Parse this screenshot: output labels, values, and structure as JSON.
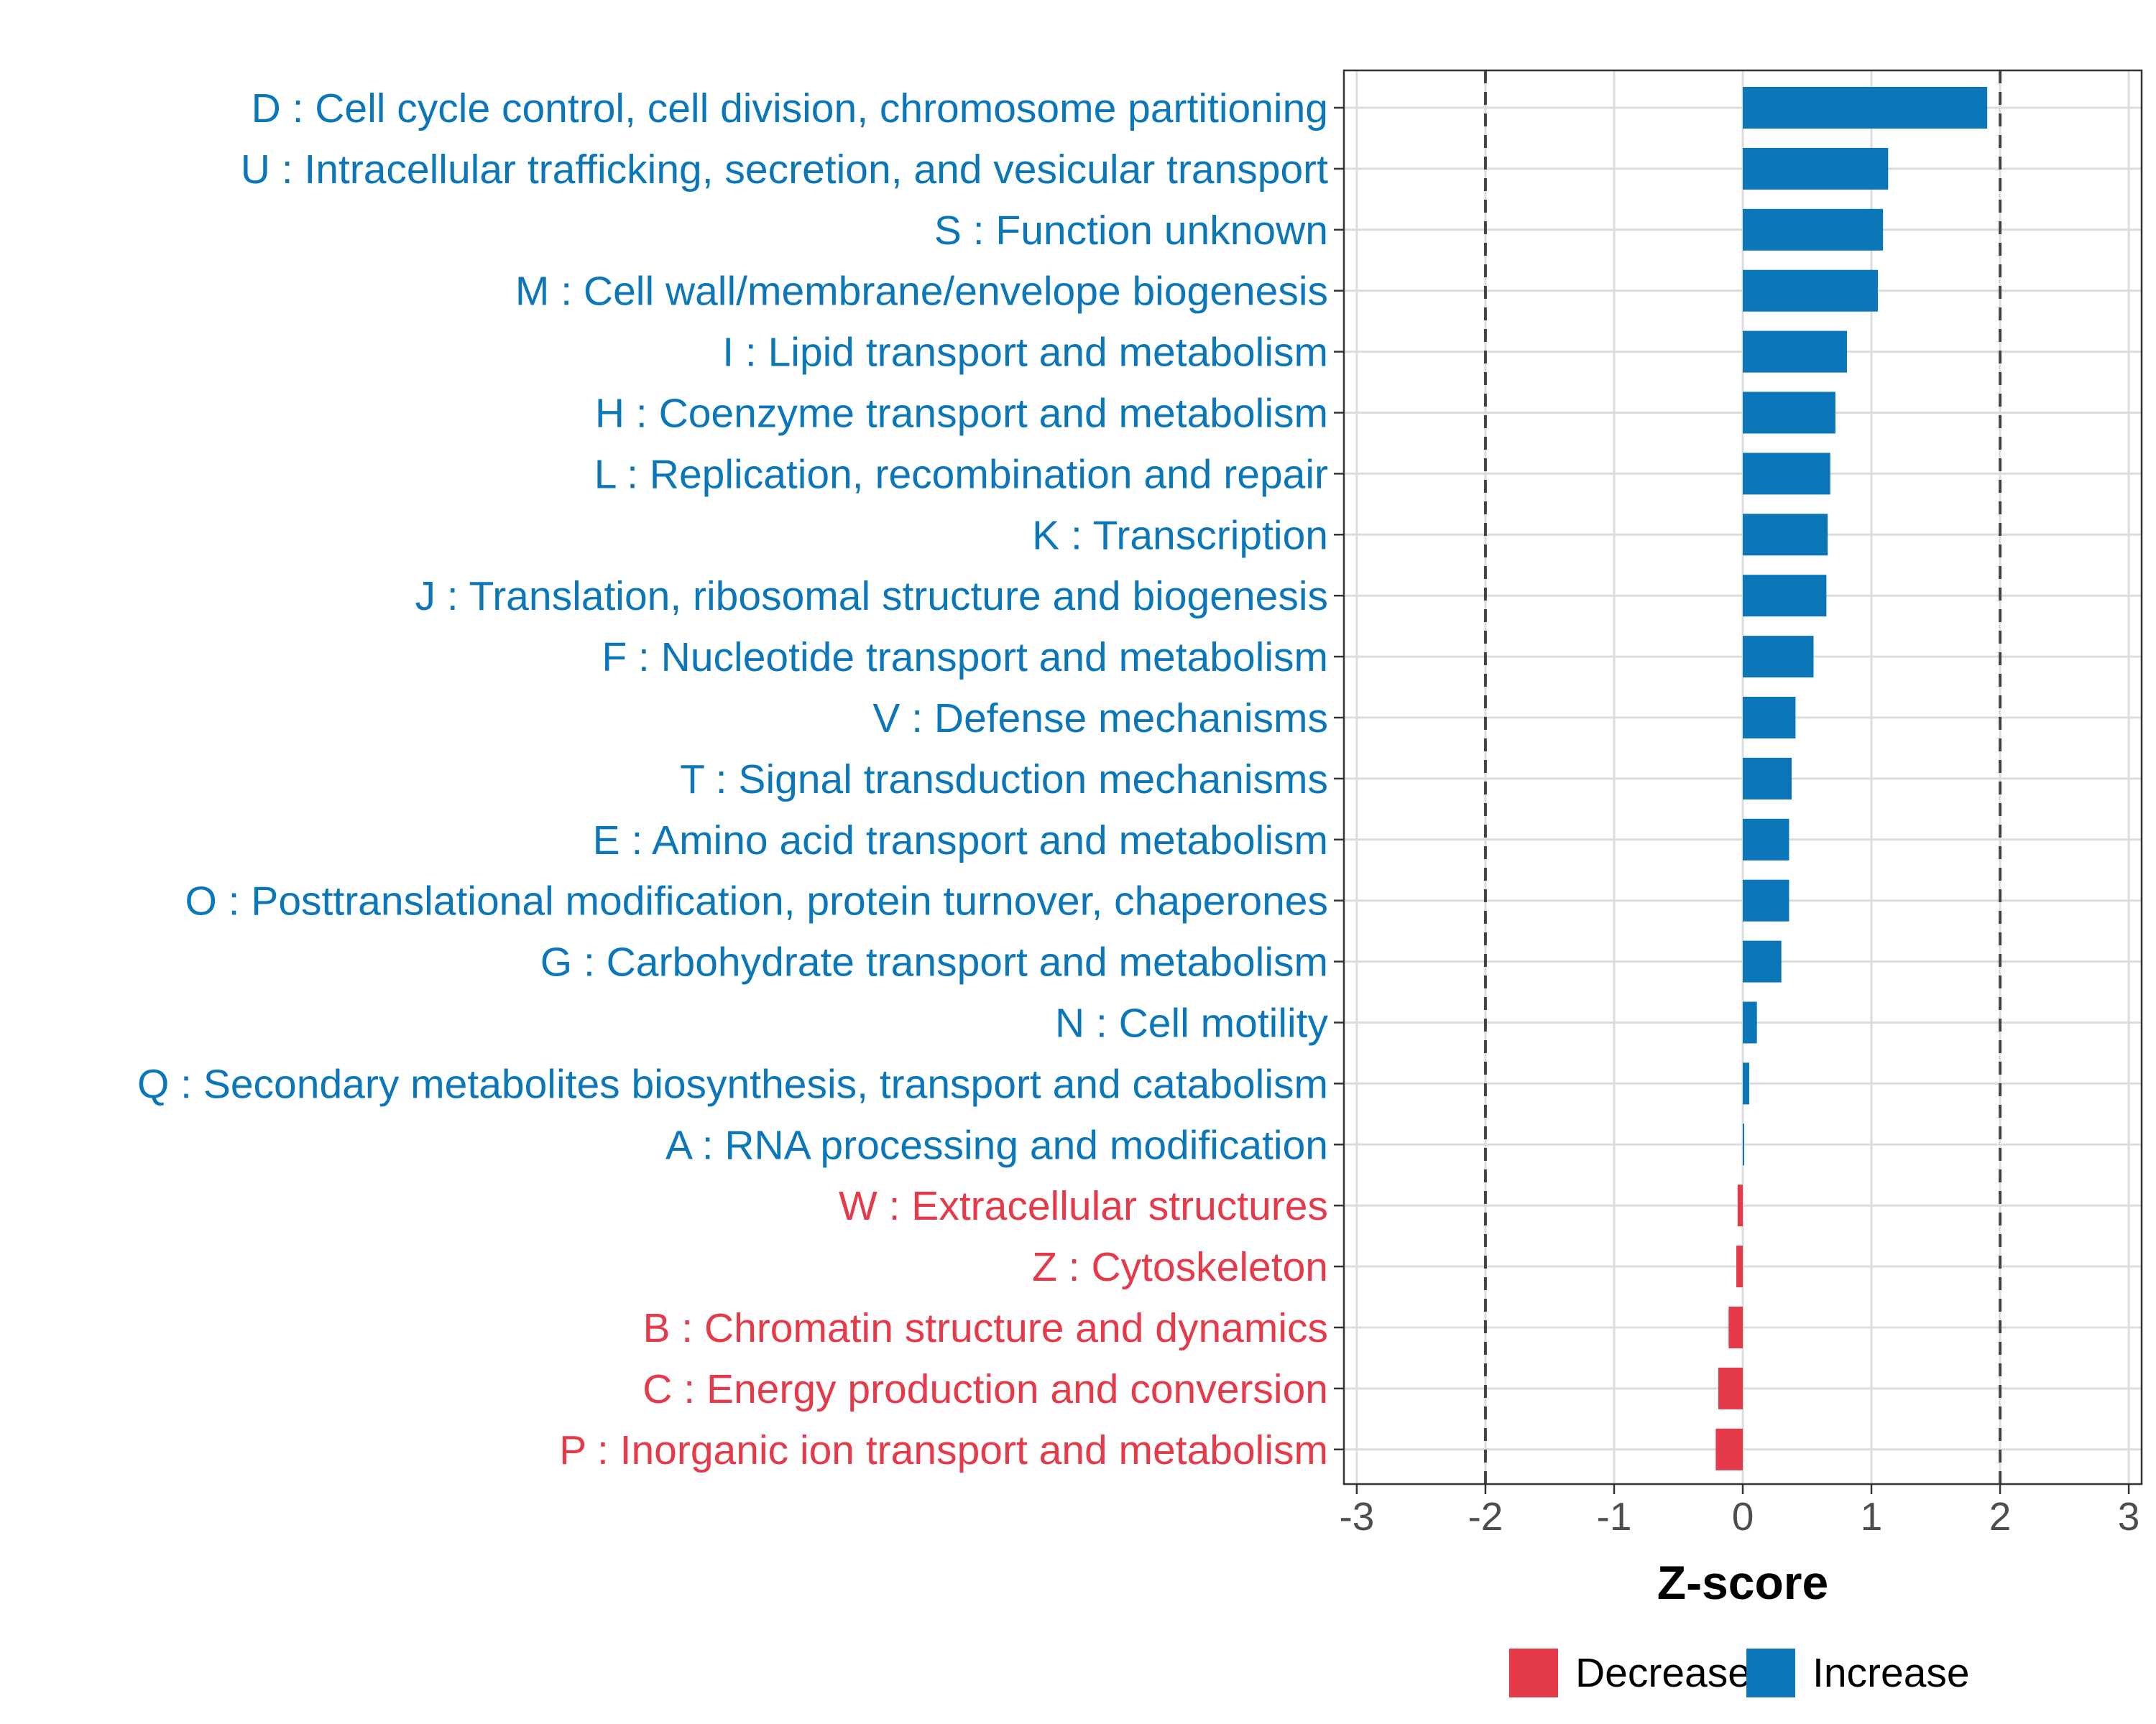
{
  "chart_data": {
    "type": "bar",
    "orientation": "horizontal",
    "xlabel": "Z-score",
    "ylabel": "",
    "xlim": [
      -3.1,
      3.1
    ],
    "xticks": [
      -3,
      -2,
      -1,
      0,
      1,
      2,
      3
    ],
    "tick_labels": [
      "-3",
      "-2",
      "-1",
      "0",
      "1",
      "2",
      "3"
    ],
    "reference_lines": [
      -2,
      2
    ],
    "grid": true,
    "colors": {
      "Increase": "#0b77b8",
      "Decrease": "#e43a4a"
    },
    "legend": {
      "position": "bottom",
      "entries": [
        {
          "label": "Decrease",
          "color": "#e43a4a"
        },
        {
          "label": "Increase",
          "color": "#0b77b8"
        }
      ]
    },
    "categories": [
      "D : Cell cycle control, cell division, chromosome partitioning",
      "U : Intracellular trafficking, secretion, and vesicular transport",
      "S : Function unknown",
      "M : Cell wall/membrane/envelope biogenesis",
      "I : Lipid transport and metabolism",
      "H : Coenzyme transport and metabolism",
      "L : Replication, recombination and repair",
      "K : Transcription",
      "J : Translation, ribosomal structure and biogenesis",
      "F : Nucleotide transport and metabolism",
      "V : Defense mechanisms",
      "T : Signal transduction mechanisms",
      "E : Amino acid transport and metabolism",
      "O : Posttranslational modification, protein turnover, chaperones",
      "G : Carbohydrate transport and metabolism",
      "N : Cell motility",
      "Q : Secondary metabolites biosynthesis, transport and catabolism",
      "A : RNA processing and modification",
      "W : Extracellular structures",
      "Z : Cytoskeleton",
      "B : Chromatin structure and dynamics",
      "C : Energy production and conversion",
      "P : Inorganic ion transport and metabolism"
    ],
    "values": [
      1.9,
      1.13,
      1.09,
      1.05,
      0.81,
      0.72,
      0.68,
      0.66,
      0.65,
      0.55,
      0.41,
      0.38,
      0.36,
      0.36,
      0.3,
      0.11,
      0.05,
      0.01,
      -0.04,
      -0.05,
      -0.11,
      -0.19,
      -0.21
    ],
    "groups": [
      "Increase",
      "Increase",
      "Increase",
      "Increase",
      "Increase",
      "Increase",
      "Increase",
      "Increase",
      "Increase",
      "Increase",
      "Increase",
      "Increase",
      "Increase",
      "Increase",
      "Increase",
      "Increase",
      "Increase",
      "Increase",
      "Decrease",
      "Decrease",
      "Decrease",
      "Decrease",
      "Decrease"
    ]
  }
}
